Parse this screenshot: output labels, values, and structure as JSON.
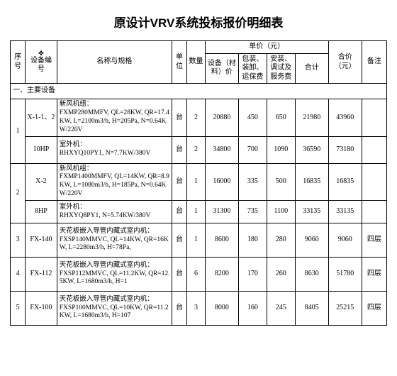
{
  "title": "原设计VRV系统投标报价明细表",
  "header": {
    "seq": "序号",
    "dev_marker": "✤",
    "dev": "设备编号",
    "spec": "名称与规格",
    "unit": "单位",
    "qty": "数量",
    "price_group": "单价（元）",
    "p1": "设备（材料）价",
    "p2": "包装、装卸、运保费",
    "p3": "安装、调试及服务费",
    "p4": "合计",
    "total": "合价（元）",
    "note": "备注"
  },
  "section1": "一、主要设备",
  "rows": [
    {
      "seq": "1",
      "dev": "X-1-1、2",
      "spec": "新风机组：\nFXMP280MMFV, QL=28KW, QR=17.4KW, L=2100m3/h, H=205Pa, N=0.64KW/220V",
      "unit": "台",
      "qty": "2",
      "p1": "20880",
      "p2": "450",
      "p3": "650",
      "p4": "21980",
      "total": "43960",
      "note": ""
    },
    {
      "seq": "",
      "dev": "10HP",
      "spec": "室外机：\nRHXYQ10PY1, N=7.7KW/380V",
      "unit": "台",
      "qty": "2",
      "p1": "34800",
      "p2": "700",
      "p3": "1090",
      "p4": "36590",
      "total": "73180",
      "note": ""
    },
    {
      "seq": "2",
      "dev": "X-2",
      "spec": "新风机组：\nFXMP1400MMFV, QL=14KW, QR=8.9KW, L=1080m3/h, H=185Pa, N=0.64KW/220V",
      "unit": "台",
      "qty": "1",
      "p1": "16000",
      "p2": "335",
      "p3": "500",
      "p4": "16835",
      "total": "16835",
      "note": ""
    },
    {
      "seq": "",
      "dev": "8HP",
      "spec": "室外机：\nRHXYQ8PY1, N=5.74KW/380V",
      "unit": "台",
      "qty": "1",
      "p1": "31300",
      "p2": "735",
      "p3": "1100",
      "p4": "33135",
      "total": "33135",
      "note": ""
    },
    {
      "seq": "3",
      "dev": "FX-140",
      "spec": "天花板嵌入导管内藏式室内机：\nFXSP140MMVC, QL=14KW, QR=16KW, L=2280m3/h, H=78Pa,",
      "unit": "台",
      "qty": "1",
      "p1": "8600",
      "p2": "180",
      "p3": "280",
      "p4": "9060",
      "total": "9060",
      "note": "四层"
    },
    {
      "seq": "4",
      "dev": "FX-112",
      "spec": "天花板嵌入导管内藏式室内机：\nFXSP112MMVC, QL=11.2KW, QR=12.5KW, L=1680m3/h, H=1",
      "unit": "台",
      "qty": "6",
      "p1": "8200",
      "p2": "170",
      "p3": "260",
      "p4": "8630",
      "total": "51780",
      "note": "四层"
    },
    {
      "seq": "5",
      "dev": "FX-100",
      "spec": "天花板嵌入导管内藏式室内机：\nFXSP100MMVC, QL=10KW, QR=11.2KW, L=1680m3/h, H=107",
      "unit": "台",
      "qty": "3",
      "p1": "8000",
      "p2": "160",
      "p3": "245",
      "p4": "8405",
      "total": "25215",
      "note": "四层"
    }
  ],
  "colors": {
    "bg": "#ffffff",
    "ink": "#000000"
  }
}
